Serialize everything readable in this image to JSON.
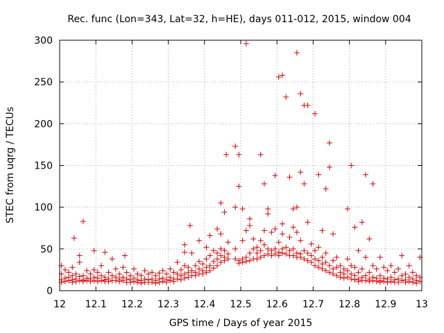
{
  "chart_data": {
    "type": "scatter",
    "title": "Rec. func (Lon=343, Lat=32, h=HE), days 011-012, 2015, window 004",
    "xlabel": "GPS time / Days of year 2015",
    "ylabel": "STEC from uqrg / TECUs",
    "xlim": [
      12,
      13
    ],
    "ylim": [
      0,
      300
    ],
    "x_ticks": [
      "12",
      "12.1",
      "12.2",
      "12.3",
      "12.4",
      "12.5",
      "12.6",
      "12.7",
      "12.8",
      "12.9",
      "13"
    ],
    "y_ticks": [
      "0",
      "50",
      "100",
      "150",
      "200",
      "250",
      "300"
    ],
    "grid": true,
    "marker": "+",
    "color": "#d00000",
    "points": [
      [
        12.005,
        30
      ],
      [
        12.005,
        20
      ],
      [
        12.005,
        13
      ],
      [
        12.005,
        10
      ],
      [
        12.015,
        25
      ],
      [
        12.015,
        15
      ],
      [
        12.015,
        11
      ],
      [
        12.025,
        22
      ],
      [
        12.025,
        16
      ],
      [
        12.025,
        12
      ],
      [
        12.035,
        28
      ],
      [
        12.035,
        18
      ],
      [
        12.035,
        13
      ],
      [
        12.035,
        10
      ],
      [
        12.04,
        63
      ],
      [
        12.045,
        20
      ],
      [
        12.045,
        14
      ],
      [
        12.045,
        11
      ],
      [
        12.055,
        42
      ],
      [
        12.055,
        34
      ],
      [
        12.055,
        17
      ],
      [
        12.055,
        12
      ],
      [
        12.065,
        83
      ],
      [
        12.065,
        18
      ],
      [
        12.065,
        13
      ],
      [
        12.065,
        11
      ],
      [
        12.075,
        24
      ],
      [
        12.075,
        15
      ],
      [
        12.075,
        12
      ],
      [
        12.085,
        20
      ],
      [
        12.085,
        14
      ],
      [
        12.085,
        11
      ],
      [
        12.095,
        48
      ],
      [
        12.095,
        25
      ],
      [
        12.095,
        16
      ],
      [
        12.095,
        12
      ],
      [
        12.105,
        22
      ],
      [
        12.105,
        15
      ],
      [
        12.105,
        11
      ],
      [
        12.115,
        30
      ],
      [
        12.115,
        18
      ],
      [
        12.115,
        12
      ],
      [
        12.125,
        46
      ],
      [
        12.125,
        16
      ],
      [
        12.125,
        13
      ],
      [
        12.125,
        11
      ],
      [
        12.135,
        22
      ],
      [
        12.135,
        14
      ],
      [
        12.135,
        11
      ],
      [
        12.145,
        38
      ],
      [
        12.145,
        18
      ],
      [
        12.145,
        12
      ],
      [
        12.155,
        26
      ],
      [
        12.155,
        16
      ],
      [
        12.155,
        12
      ],
      [
        12.165,
        20
      ],
      [
        12.165,
        14
      ],
      [
        12.165,
        11
      ],
      [
        12.175,
        28
      ],
      [
        12.175,
        16
      ],
      [
        12.175,
        12
      ],
      [
        12.18,
        42
      ],
      [
        12.185,
        22
      ],
      [
        12.185,
        14
      ],
      [
        12.185,
        10
      ],
      [
        12.195,
        18
      ],
      [
        12.195,
        13
      ],
      [
        12.195,
        10
      ],
      [
        12.205,
        26
      ],
      [
        12.205,
        15
      ],
      [
        12.205,
        11
      ],
      [
        12.215,
        20
      ],
      [
        12.215,
        13
      ],
      [
        12.215,
        10
      ],
      [
        12.225,
        18
      ],
      [
        12.225,
        12
      ],
      [
        12.225,
        9
      ],
      [
        12.235,
        24
      ],
      [
        12.235,
        14
      ],
      [
        12.235,
        10
      ],
      [
        12.245,
        20
      ],
      [
        12.245,
        13
      ],
      [
        12.245,
        10
      ],
      [
        12.255,
        22
      ],
      [
        12.255,
        14
      ],
      [
        12.255,
        10
      ],
      [
        12.265,
        18
      ],
      [
        12.265,
        12
      ],
      [
        12.265,
        9
      ],
      [
        12.275,
        21
      ],
      [
        12.275,
        14
      ],
      [
        12.275,
        10
      ],
      [
        12.285,
        24
      ],
      [
        12.285,
        15
      ],
      [
        12.285,
        11
      ],
      [
        12.295,
        20
      ],
      [
        12.295,
        13
      ],
      [
        12.295,
        10
      ],
      [
        12.305,
        26
      ],
      [
        12.305,
        16
      ],
      [
        12.305,
        12
      ],
      [
        12.315,
        22
      ],
      [
        12.315,
        14
      ],
      [
        12.315,
        11
      ],
      [
        12.325,
        34
      ],
      [
        12.325,
        20
      ],
      [
        12.325,
        14
      ],
      [
        12.335,
        25
      ],
      [
        12.335,
        18
      ],
      [
        12.335,
        13
      ],
      [
        12.345,
        55
      ],
      [
        12.345,
        46
      ],
      [
        12.345,
        30
      ],
      [
        12.345,
        20
      ],
      [
        12.345,
        15
      ],
      [
        12.355,
        28
      ],
      [
        12.355,
        22
      ],
      [
        12.355,
        16
      ],
      [
        12.36,
        78
      ],
      [
        12.365,
        45
      ],
      [
        12.365,
        24
      ],
      [
        12.365,
        18
      ],
      [
        12.375,
        30
      ],
      [
        12.375,
        22
      ],
      [
        12.375,
        18
      ],
      [
        12.385,
        60
      ],
      [
        12.385,
        35
      ],
      [
        12.385,
        26
      ],
      [
        12.385,
        20
      ],
      [
        12.395,
        32
      ],
      [
        12.395,
        24
      ],
      [
        12.395,
        20
      ],
      [
        12.405,
        52
      ],
      [
        12.405,
        38
      ],
      [
        12.405,
        28
      ],
      [
        12.405,
        22
      ],
      [
        12.415,
        66
      ],
      [
        12.415,
        42
      ],
      [
        12.415,
        30
      ],
      [
        12.415,
        24
      ],
      [
        12.425,
        48
      ],
      [
        12.425,
        35
      ],
      [
        12.425,
        27
      ],
      [
        12.435,
        74
      ],
      [
        12.435,
        45
      ],
      [
        12.435,
        38
      ],
      [
        12.435,
        30
      ],
      [
        12.445,
        105
      ],
      [
        12.445,
        68
      ],
      [
        12.445,
        50
      ],
      [
        12.445,
        42
      ],
      [
        12.445,
        34
      ],
      [
        12.455,
        94
      ],
      [
        12.455,
        48
      ],
      [
        12.455,
        40
      ],
      [
        12.455,
        36
      ],
      [
        12.46,
        163
      ],
      [
        12.465,
        58
      ],
      [
        12.465,
        44
      ],
      [
        12.465,
        38
      ],
      [
        12.485,
        173
      ],
      [
        12.485,
        100
      ],
      [
        12.485,
        50
      ],
      [
        12.485,
        38
      ],
      [
        12.495,
        163
      ],
      [
        12.495,
        125
      ],
      [
        12.495,
        36
      ],
      [
        12.495,
        33
      ],
      [
        12.505,
        98
      ],
      [
        12.505,
        60
      ],
      [
        12.505,
        38
      ],
      [
        12.505,
        34
      ],
      [
        12.515,
        296
      ],
      [
        12.515,
        72
      ],
      [
        12.515,
        40
      ],
      [
        12.515,
        35
      ],
      [
        12.525,
        86
      ],
      [
        12.525,
        78
      ],
      [
        12.525,
        45
      ],
      [
        12.525,
        36
      ],
      [
        12.535,
        62
      ],
      [
        12.535,
        50
      ],
      [
        12.535,
        38
      ],
      [
        12.545,
        52
      ],
      [
        12.545,
        45
      ],
      [
        12.545,
        38
      ],
      [
        12.555,
        163
      ],
      [
        12.555,
        60
      ],
      [
        12.555,
        48
      ],
      [
        12.555,
        40
      ],
      [
        12.565,
        128
      ],
      [
        12.565,
        72
      ],
      [
        12.565,
        55
      ],
      [
        12.565,
        42
      ],
      [
        12.575,
        98
      ],
      [
        12.575,
        92
      ],
      [
        12.575,
        50
      ],
      [
        12.575,
        44
      ],
      [
        12.585,
        70
      ],
      [
        12.585,
        48
      ],
      [
        12.585,
        42
      ],
      [
        12.595,
        138
      ],
      [
        12.595,
        74
      ],
      [
        12.595,
        50
      ],
      [
        12.595,
        44
      ],
      [
        12.605,
        256
      ],
      [
        12.605,
        58
      ],
      [
        12.605,
        46
      ],
      [
        12.605,
        42
      ],
      [
        12.615,
        258
      ],
      [
        12.615,
        80
      ],
      [
        12.615,
        68
      ],
      [
        12.615,
        50
      ],
      [
        12.615,
        45
      ],
      [
        12.625,
        232
      ],
      [
        12.625,
        52
      ],
      [
        12.625,
        44
      ],
      [
        12.635,
        136
      ],
      [
        12.635,
        64
      ],
      [
        12.635,
        48
      ],
      [
        12.635,
        42
      ],
      [
        12.645,
        98
      ],
      [
        12.645,
        76
      ],
      [
        12.645,
        50
      ],
      [
        12.645,
        42
      ],
      [
        12.655,
        285
      ],
      [
        12.655,
        100
      ],
      [
        12.655,
        70
      ],
      [
        12.655,
        45
      ],
      [
        12.655,
        40
      ],
      [
        12.665,
        236
      ],
      [
        12.665,
        142
      ],
      [
        12.665,
        60
      ],
      [
        12.665,
        44
      ],
      [
        12.665,
        40
      ],
      [
        12.675,
        222
      ],
      [
        12.675,
        128
      ],
      [
        12.675,
        48
      ],
      [
        12.675,
        38
      ],
      [
        12.685,
        222
      ],
      [
        12.685,
        82
      ],
      [
        12.685,
        45
      ],
      [
        12.685,
        36
      ],
      [
        12.695,
        56
      ],
      [
        12.695,
        42
      ],
      [
        12.695,
        34
      ],
      [
        12.705,
        212
      ],
      [
        12.705,
        48
      ],
      [
        12.705,
        38
      ],
      [
        12.705,
        30
      ],
      [
        12.715,
        139
      ],
      [
        12.715,
        52
      ],
      [
        12.715,
        36
      ],
      [
        12.715,
        28
      ],
      [
        12.725,
        72
      ],
      [
        12.725,
        40
      ],
      [
        12.725,
        32
      ],
      [
        12.725,
        26
      ],
      [
        12.735,
        122
      ],
      [
        12.735,
        45
      ],
      [
        12.735,
        34
      ],
      [
        12.735,
        24
      ],
      [
        12.745,
        177
      ],
      [
        12.745,
        148
      ],
      [
        12.745,
        30
      ],
      [
        12.745,
        22
      ],
      [
        12.755,
        68
      ],
      [
        12.755,
        36
      ],
      [
        12.755,
        26
      ],
      [
        12.755,
        20
      ],
      [
        12.765,
        40
      ],
      [
        12.765,
        28
      ],
      [
        12.765,
        18
      ],
      [
        12.775,
        30
      ],
      [
        12.775,
        22
      ],
      [
        12.775,
        16
      ],
      [
        12.785,
        26
      ],
      [
        12.785,
        20
      ],
      [
        12.785,
        15
      ],
      [
        12.795,
        98
      ],
      [
        12.795,
        38
      ],
      [
        12.795,
        24
      ],
      [
        12.795,
        16
      ],
      [
        12.805,
        150
      ],
      [
        12.805,
        30
      ],
      [
        12.805,
        20
      ],
      [
        12.805,
        14
      ],
      [
        12.815,
        76
      ],
      [
        12.815,
        28
      ],
      [
        12.815,
        18
      ],
      [
        12.815,
        13
      ],
      [
        12.825,
        48
      ],
      [
        12.825,
        22
      ],
      [
        12.825,
        14
      ],
      [
        12.825,
        11
      ],
      [
        12.835,
        82
      ],
      [
        12.835,
        26
      ],
      [
        12.835,
        16
      ],
      [
        12.835,
        12
      ],
      [
        12.845,
        139
      ],
      [
        12.845,
        40
      ],
      [
        12.845,
        18
      ],
      [
        12.845,
        12
      ],
      [
        12.855,
        62
      ],
      [
        12.855,
        22
      ],
      [
        12.855,
        14
      ],
      [
        12.855,
        11
      ],
      [
        12.865,
        128
      ],
      [
        12.865,
        30
      ],
      [
        12.865,
        16
      ],
      [
        12.865,
        12
      ],
      [
        12.875,
        26
      ],
      [
        12.875,
        15
      ],
      [
        12.875,
        11
      ],
      [
        12.885,
        40
      ],
      [
        12.885,
        18
      ],
      [
        12.885,
        12
      ],
      [
        12.885,
        10
      ],
      [
        12.895,
        28
      ],
      [
        12.895,
        15
      ],
      [
        12.895,
        11
      ],
      [
        12.905,
        24
      ],
      [
        12.905,
        14
      ],
      [
        12.905,
        10
      ],
      [
        12.915,
        30
      ],
      [
        12.915,
        16
      ],
      [
        12.915,
        11
      ],
      [
        12.925,
        22
      ],
      [
        12.925,
        13
      ],
      [
        12.925,
        10
      ],
      [
        12.935,
        26
      ],
      [
        12.935,
        14
      ],
      [
        12.935,
        10
      ],
      [
        12.945,
        42
      ],
      [
        12.945,
        18
      ],
      [
        12.945,
        12
      ],
      [
        12.955,
        20
      ],
      [
        12.955,
        13
      ],
      [
        12.955,
        10
      ],
      [
        12.965,
        30
      ],
      [
        12.965,
        16
      ],
      [
        12.965,
        11
      ],
      [
        12.975,
        22
      ],
      [
        12.975,
        14
      ],
      [
        12.975,
        10
      ],
      [
        12.985,
        18
      ],
      [
        12.985,
        12
      ],
      [
        12.985,
        9
      ],
      [
        12.995,
        40
      ],
      [
        12.995,
        16
      ],
      [
        12.995,
        11
      ]
    ]
  }
}
